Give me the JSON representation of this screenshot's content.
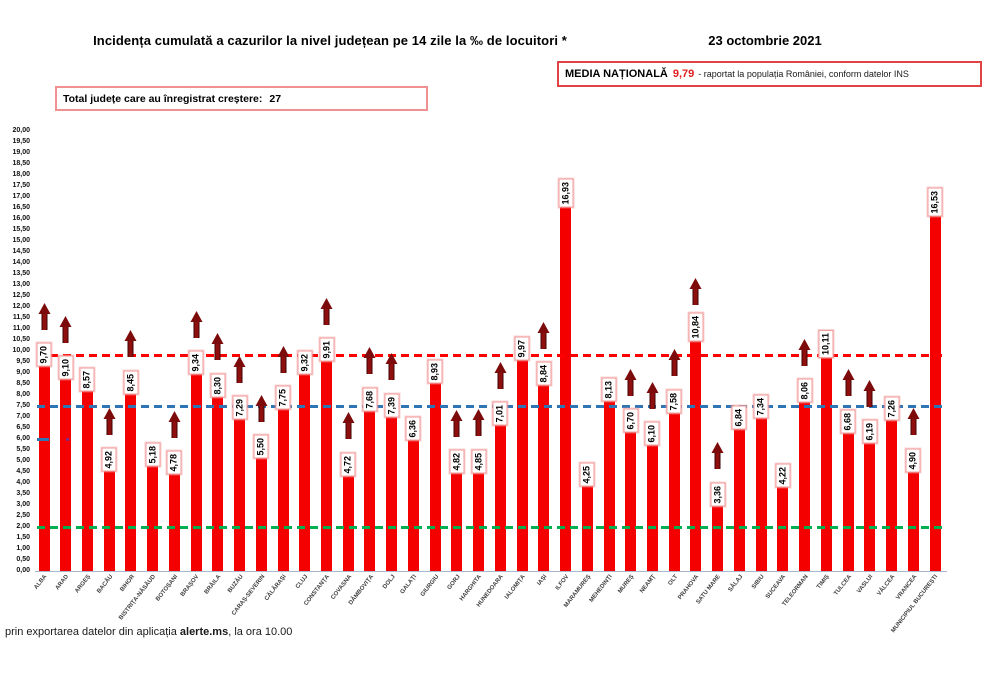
{
  "header": {
    "title": "Incidența cumulată a cazurilor la nivel județean pe 14 zile la ‰ de locuitori *",
    "date": "23 octombrie 2021",
    "national_average_label": "MEDIA NAȚIONALĂ",
    "national_average_value": "9,79",
    "national_average_note": "-  raportat la populația României, conform datelor INS",
    "total_increase_label": "Total județe care au înregistrat creștere:",
    "total_increase_value": "27"
  },
  "footer": {
    "prefix": "prin exportarea datelor din aplicația ",
    "bold": "alerte.ms",
    "suffix": ", la ora 10.00"
  },
  "colors": {
    "bar": "#f40000",
    "arrow": "#8f0f0f",
    "national_average_line": "#ff0000",
    "blue_threshold_line": "#2e75b6",
    "green_threshold_line": "#00b050",
    "value_box_border": "#f29b9b",
    "media_box_border": "#e04343",
    "total_box_border": "#f09090",
    "national_average_text": "#e02020"
  },
  "chart_data": {
    "type": "bar",
    "title": "Incidența cumulată a cazurilor la nivel județean pe 14 zile la ‰ de locuitori *",
    "xlabel": "",
    "ylabel": "",
    "ylim": [
      0,
      20
    ],
    "ytick_step": 0.5,
    "decimal_format": "comma",
    "grid": false,
    "legend": false,
    "categories": [
      "ALBA",
      "ARAD",
      "ARGEȘ",
      "BACĂU",
      "BIHOR",
      "BISTRIȚA-NĂSĂUD",
      "BOTOȘANI",
      "BRAȘOV",
      "BRĂILA",
      "BUZĂU",
      "CARAȘ-SEVERIN",
      "CĂLĂRAȘI",
      "CLUJ",
      "CONSTANȚA",
      "COVASNA",
      "DÂMBOVIȚA",
      "DOLJ",
      "GALAȚI",
      "GIURGIU",
      "GORJ",
      "HARGHITA",
      "HUNEDOARA",
      "IALOMIȚA",
      "IAȘI",
      "ILFOV",
      "MARAMUREȘ",
      "MEHEDINȚI",
      "MUREȘ",
      "NEAMȚ",
      "OLT",
      "PRAHOVA",
      "SATU MARE",
      "SĂLAJ",
      "SIBIU",
      "SUCEAVA",
      "TELEORMAN",
      "TIMIȘ",
      "TULCEA",
      "VASLUI",
      "VÂLCEA",
      "VRANCEA",
      "MUNICIPIUL BUCUREȘTI"
    ],
    "values": [
      9.7,
      9.1,
      8.57,
      4.92,
      8.45,
      5.18,
      4.78,
      9.34,
      8.3,
      7.29,
      5.5,
      7.75,
      9.32,
      9.91,
      4.72,
      7.68,
      7.39,
      6.36,
      8.93,
      4.82,
      4.85,
      7.01,
      9.97,
      8.84,
      16.93,
      4.25,
      8.13,
      6.7,
      6.1,
      7.58,
      10.84,
      3.36,
      6.84,
      7.34,
      4.22,
      8.06,
      10.11,
      6.68,
      6.19,
      7.26,
      4.9,
      16.53
    ],
    "increase_arrow": [
      true,
      true,
      false,
      true,
      true,
      false,
      true,
      true,
      true,
      true,
      true,
      true,
      false,
      true,
      true,
      true,
      true,
      false,
      false,
      true,
      true,
      true,
      false,
      true,
      false,
      false,
      false,
      true,
      true,
      true,
      true,
      true,
      false,
      false,
      false,
      true,
      false,
      true,
      true,
      false,
      true,
      false
    ],
    "reference_lines": [
      {
        "name": "media-nationala",
        "value": 9.79,
        "color": "#ff0000",
        "style": "dashed"
      },
      {
        "name": "prag-albastru",
        "value": 7.5,
        "color": "#2e75b6",
        "style": "dashed"
      },
      {
        "name": "prag-verde",
        "value": 2.0,
        "color": "#00b050",
        "style": "dashed"
      }
    ],
    "bar_color": "#f40000",
    "arrow_color": "#8f0f0f"
  }
}
